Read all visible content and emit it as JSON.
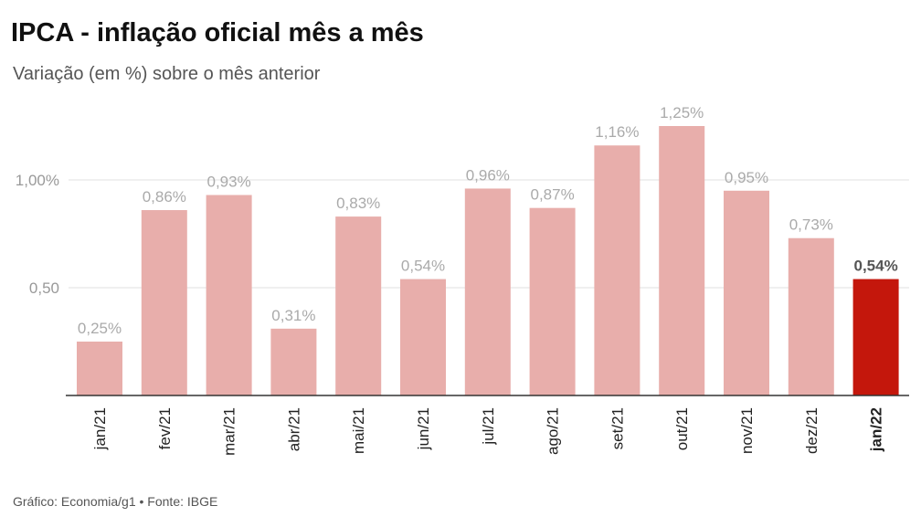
{
  "chart_data": {
    "type": "bar",
    "title": "IPCA - inflação oficial mês a mês",
    "subtitle": "Variação (em %) sobre o mês anterior",
    "categories": [
      "jan/21",
      "fev/21",
      "mar/21",
      "abr/21",
      "mai/21",
      "jun/21",
      "jul/21",
      "ago/21",
      "set/21",
      "out/21",
      "nov/21",
      "dez/21",
      "jan/22"
    ],
    "values": [
      0.25,
      0.86,
      0.93,
      0.31,
      0.83,
      0.54,
      0.96,
      0.87,
      1.16,
      1.25,
      0.95,
      0.73,
      0.54
    ],
    "data_labels": [
      "0,25%",
      "0,86%",
      "0,93%",
      "0,31%",
      "0,83%",
      "0,54%",
      "0,96%",
      "0,87%",
      "1,16%",
      "1,25%",
      "0,95%",
      "0,73%",
      "0,54%"
    ],
    "highlight_index": 12,
    "y_ticks": [
      {
        "value": 0.5,
        "label": "0,50"
      },
      {
        "value": 1.0,
        "label": "1,00%"
      }
    ],
    "ylim": [
      0,
      1.35
    ],
    "grid": true,
    "colors": {
      "bar": "#e8aeab",
      "highlight": "#c4170c"
    },
    "xlabel": "",
    "ylabel": ""
  },
  "footer": "Gráfico: Economia/g1 • Fonte: IBGE"
}
